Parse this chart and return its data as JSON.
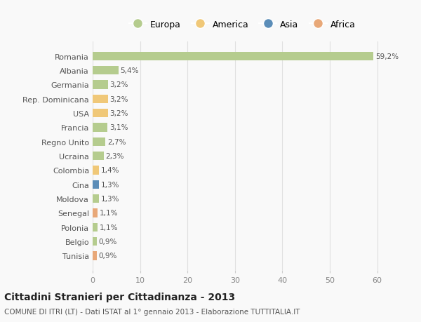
{
  "countries": [
    "Romania",
    "Albania",
    "Germania",
    "Rep. Dominicana",
    "USA",
    "Francia",
    "Regno Unito",
    "Ucraina",
    "Colombia",
    "Cina",
    "Moldova",
    "Senegal",
    "Polonia",
    "Belgio",
    "Tunisia"
  ],
  "values": [
    59.2,
    5.4,
    3.2,
    3.2,
    3.2,
    3.1,
    2.7,
    2.3,
    1.4,
    1.3,
    1.3,
    1.1,
    1.1,
    0.9,
    0.9
  ],
  "labels": [
    "59,2%",
    "5,4%",
    "3,2%",
    "3,2%",
    "3,2%",
    "3,1%",
    "2,7%",
    "2,3%",
    "1,4%",
    "1,3%",
    "1,3%",
    "1,1%",
    "1,1%",
    "0,9%",
    "0,9%"
  ],
  "continents": [
    "Europa",
    "Europa",
    "Europa",
    "America",
    "America",
    "Europa",
    "Europa",
    "Europa",
    "America",
    "Asia",
    "Europa",
    "Africa",
    "Europa",
    "Europa",
    "Africa"
  ],
  "continent_colors": {
    "Europa": "#b5cc8e",
    "America": "#f0c878",
    "Asia": "#5b8db8",
    "Africa": "#e8a878"
  },
  "legend_items": [
    "Europa",
    "America",
    "Asia",
    "Africa"
  ],
  "legend_colors": [
    "#b5cc8e",
    "#f0c878",
    "#5b8db8",
    "#e8a878"
  ],
  "title": "Cittadini Stranieri per Cittadinanza - 2013",
  "subtitle": "COMUNE DI ITRI (LT) - Dati ISTAT al 1° gennaio 2013 - Elaborazione TUTTITALIA.IT",
  "xlim": [
    0,
    63
  ],
  "xticks": [
    0,
    10,
    20,
    30,
    40,
    50,
    60
  ],
  "background_color": "#f9f9f9",
  "grid_color": "#e0e0e0",
  "bar_height": 0.6
}
